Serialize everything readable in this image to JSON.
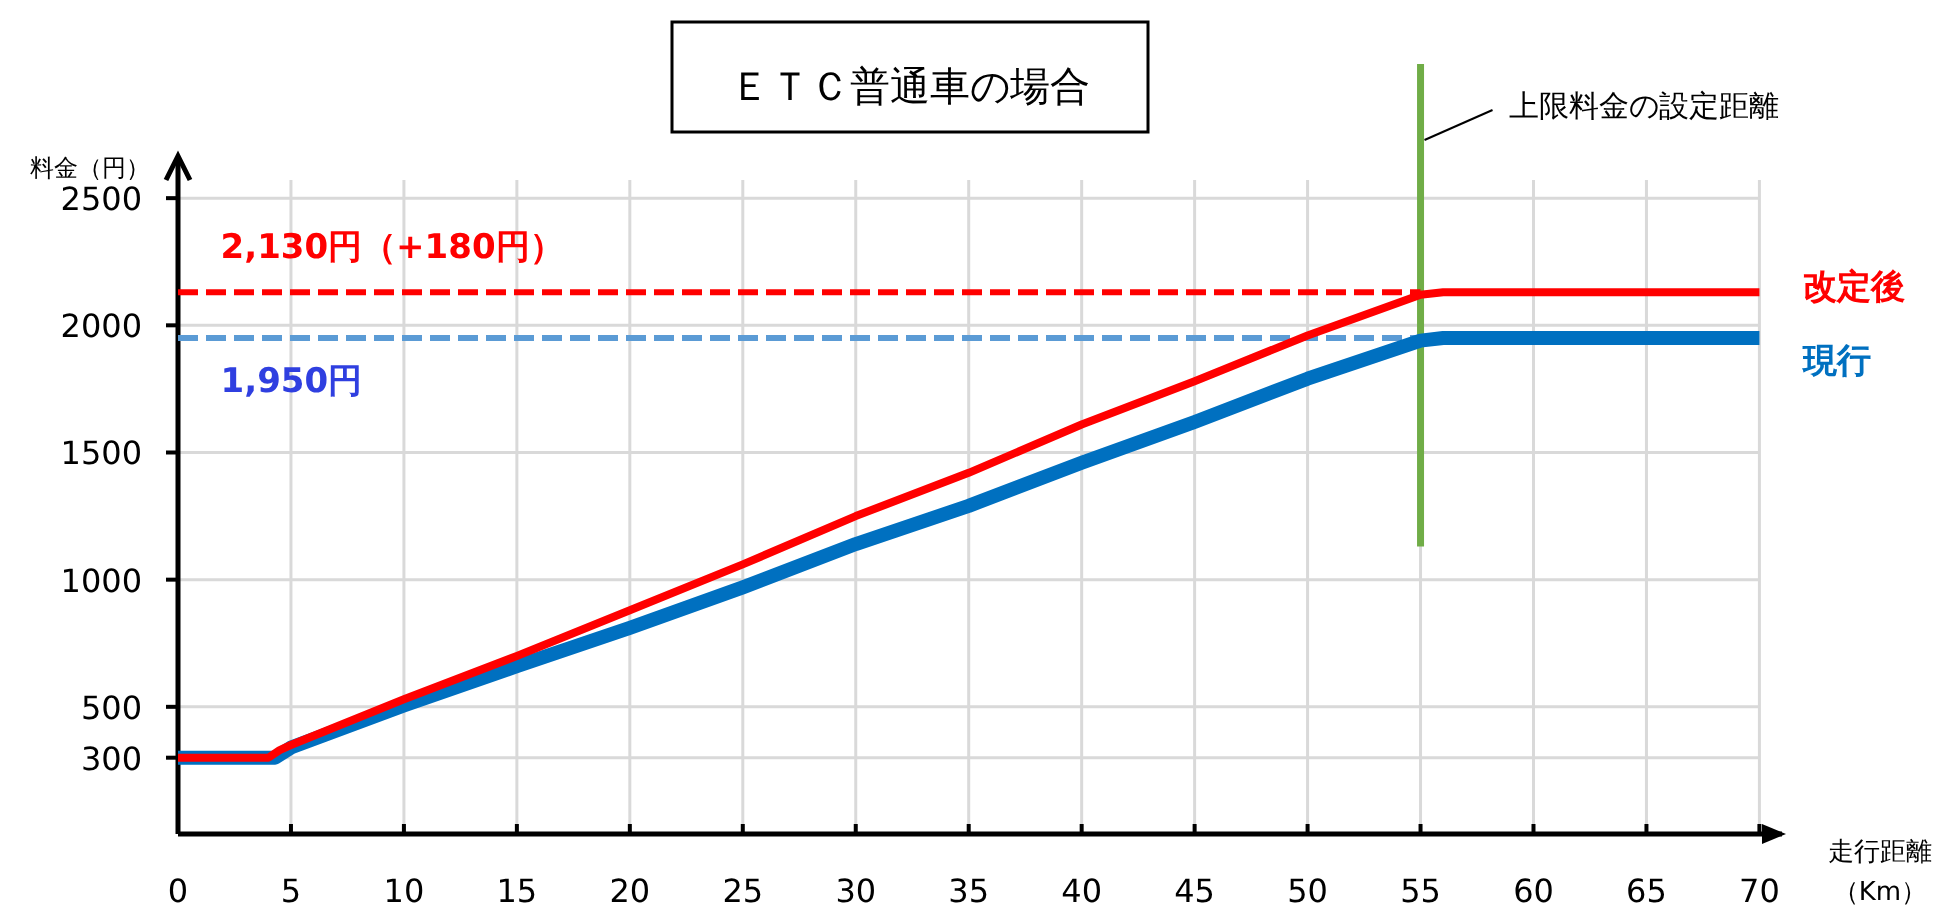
{
  "chart_data": {
    "type": "line",
    "title": "ＥＴＣ普通車の場合",
    "xlabel": "走行距離（Km）",
    "ylabel": "料金（円）",
    "xlim": [
      0,
      71
    ],
    "xticks": [
      0,
      5,
      10,
      15,
      20,
      25,
      30,
      35,
      40,
      45,
      50,
      55,
      60,
      65,
      70
    ],
    "ylim": [
      0,
      2650
    ],
    "yticks": [
      300,
      500,
      1000,
      1500,
      2000,
      2500
    ],
    "grid": true,
    "line_style": "solid",
    "marker": "none",
    "series": [
      {
        "name": "改定後",
        "color": "#ff0000",
        "x": [
          0,
          4,
          4.5,
          5,
          10,
          15,
          20,
          25,
          30,
          35,
          40,
          45,
          50,
          55,
          56,
          70
        ],
        "values": [
          300,
          300,
          330,
          350,
          530,
          700,
          880,
          1060,
          1250,
          1420,
          1610,
          1780,
          1960,
          2120,
          2130,
          2130
        ]
      },
      {
        "name": "現行",
        "color": "#0070c0",
        "x": [
          0,
          4.3,
          5,
          10,
          15,
          20,
          25,
          30,
          35,
          40,
          45,
          50,
          55,
          56,
          70
        ],
        "values": [
          300,
          300,
          340,
          505,
          660,
          810,
          970,
          1140,
          1290,
          1460,
          1620,
          1790,
          1940,
          1950,
          1950
        ]
      },
      {
        "color": "#ff0000",
        "line_style": "dashed",
        "x": [
          0,
          55
        ],
        "values": [
          2130,
          2130
        ]
      },
      {
        "color": "#5b9bd5",
        "line_style": "dashed",
        "x": [
          0,
          55
        ],
        "values": [
          1950,
          1950
        ]
      }
    ],
    "ref_lines": [
      {
        "axis": "x",
        "value": 55,
        "label": "上限料金の設定距離",
        "color": "#70ad47"
      }
    ],
    "annotations": [
      {
        "text": "2,130円（+180円）",
        "x": 1,
        "y": 2130
      },
      {
        "text": "1,950円",
        "x": 1,
        "y": 1950
      }
    ]
  }
}
